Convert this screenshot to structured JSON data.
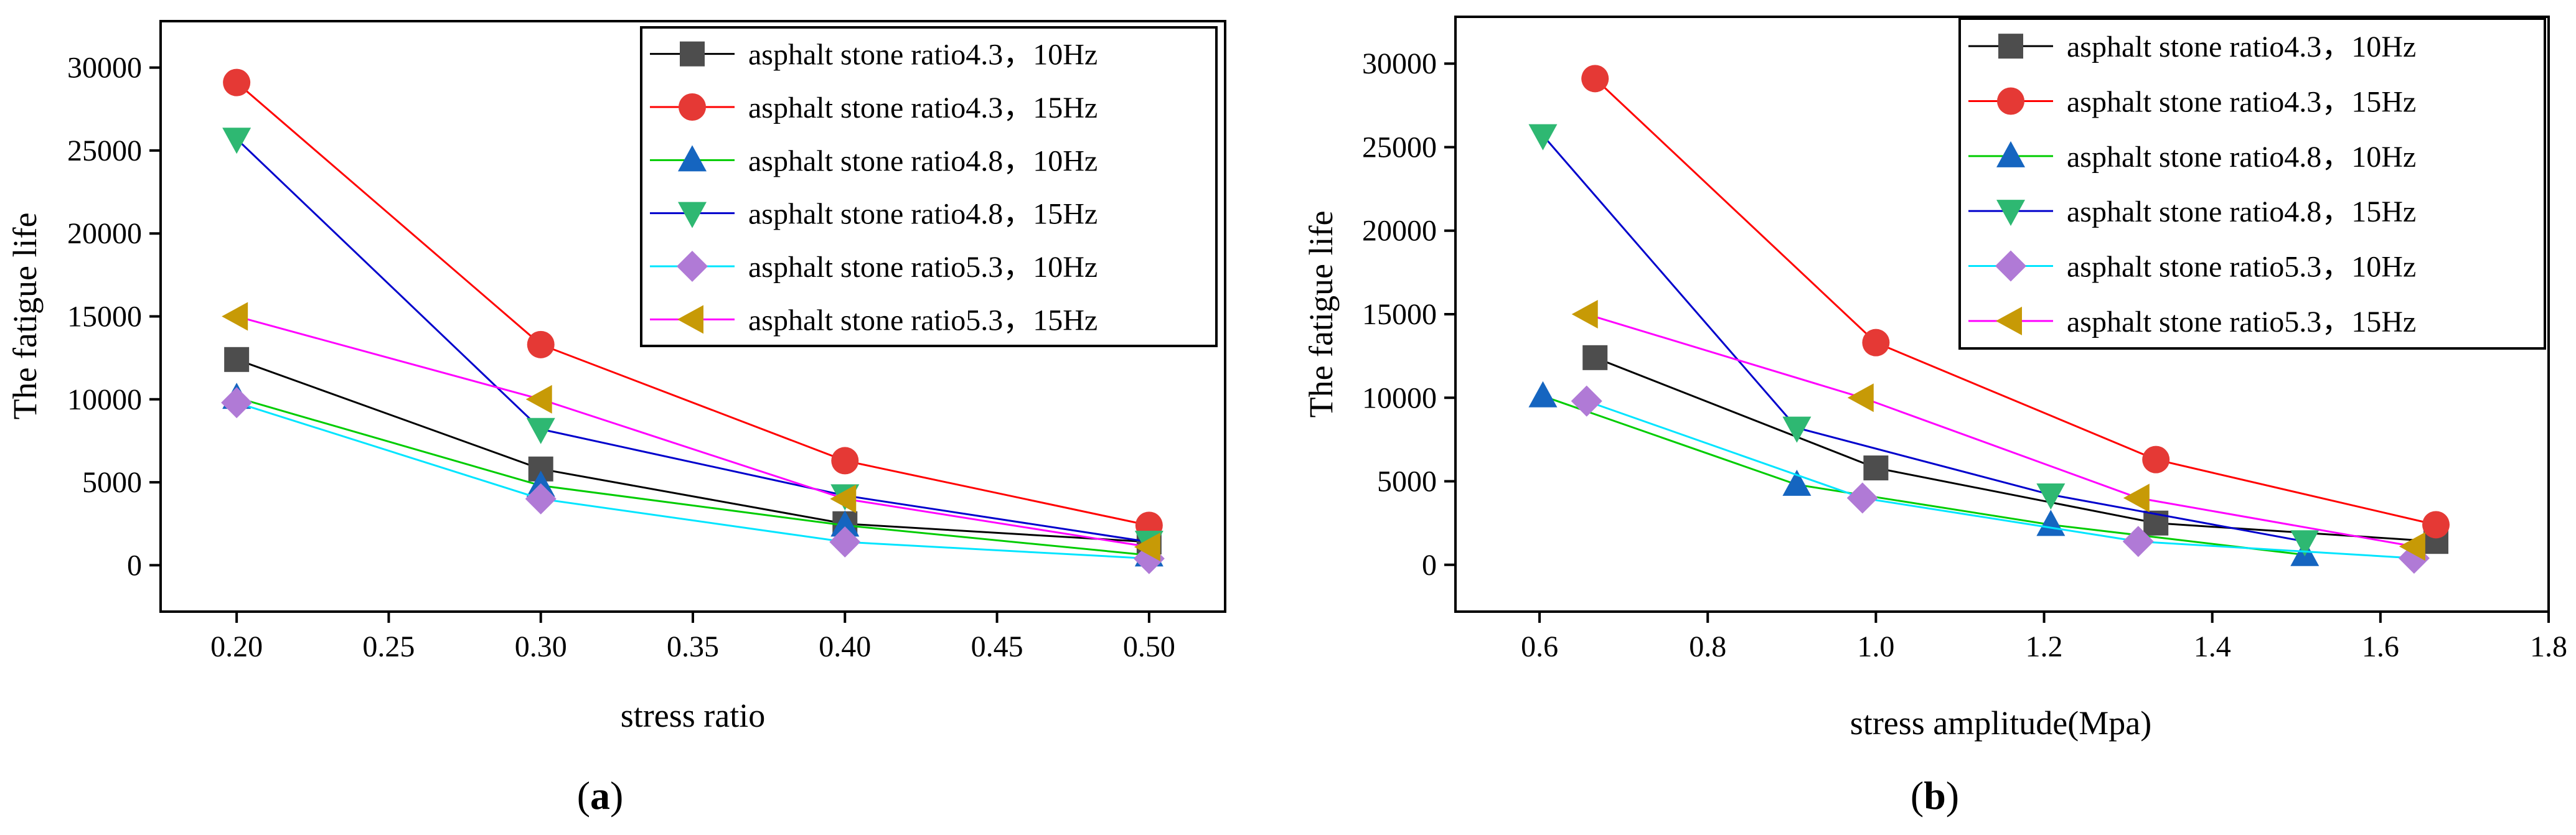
{
  "chart_data": [
    {
      "type": "line",
      "panel_label": "a",
      "xlabel": "stress ratio",
      "ylabel": "The fatigue life",
      "xlim": [
        0.175,
        0.525
      ],
      "ylim": [
        -2800,
        32800
      ],
      "xticks": [
        0.2,
        0.25,
        0.3,
        0.35,
        0.4,
        0.45,
        0.5
      ],
      "xtick_labels": [
        "0.20",
        "0.25",
        "0.30",
        "0.35",
        "0.40",
        "0.45",
        "0.50"
      ],
      "yticks": [
        0,
        5000,
        10000,
        15000,
        20000,
        25000,
        30000
      ],
      "ytick_labels": [
        "0",
        "5000",
        "10000",
        "15000",
        "20000",
        "25000",
        "30000"
      ],
      "legend_position": "top-right",
      "series": [
        {
          "name": "asphalt stone ratio4.3，10Hz",
          "color": "#000000",
          "marker_color": "#4d4d4d",
          "marker": "square",
          "x": [
            0.2,
            0.3,
            0.4,
            0.5
          ],
          "y": [
            12400,
            5800,
            2500,
            1400
          ]
        },
        {
          "name": "asphalt stone ratio4.3，15Hz",
          "color": "#ff0000",
          "marker_color": "#e53935",
          "marker": "circle",
          "x": [
            0.2,
            0.3,
            0.4,
            0.5
          ],
          "y": [
            29100,
            13300,
            6300,
            2400
          ]
        },
        {
          "name": "asphalt stone ratio4.8，10Hz",
          "color": "#00cc00",
          "marker_color": "#1565c0",
          "marker": "triangle-up",
          "x": [
            0.2,
            0.3,
            0.4,
            0.5
          ],
          "y": [
            10100,
            4800,
            2400,
            600
          ]
        },
        {
          "name": "asphalt stone ratio4.8，15Hz",
          "color": "#0000cc",
          "marker_color": "#2eb872",
          "marker": "triangle-down",
          "x": [
            0.2,
            0.3,
            0.4,
            0.5
          ],
          "y": [
            25700,
            8200,
            4200,
            1400
          ]
        },
        {
          "name": "asphalt stone ratio5.3，10Hz",
          "color": "#00e5ff",
          "marker_color": "#b07ad6",
          "marker": "diamond",
          "x": [
            0.2,
            0.3,
            0.4,
            0.5
          ],
          "y": [
            9800,
            4000,
            1400,
            400
          ]
        },
        {
          "name": "asphalt stone ratio5.3，15Hz",
          "color": "#ff00ff",
          "marker_color": "#c79a06",
          "marker": "triangle-left",
          "x": [
            0.2,
            0.3,
            0.4,
            0.5
          ],
          "y": [
            15000,
            10000,
            4000,
            1100
          ]
        }
      ]
    },
    {
      "type": "line",
      "panel_label": "b",
      "xlabel": "stress amplitude(Mpa)",
      "ylabel": "The fatigue life",
      "xlim": [
        0.5,
        1.8
      ],
      "ylim": [
        -2800,
        32800
      ],
      "xticks": [
        0.6,
        0.8,
        1.0,
        1.2,
        1.4,
        1.6,
        1.8
      ],
      "xtick_labels": [
        "0.6",
        "0.8",
        "1.0",
        "1.2",
        "1.4",
        "1.6",
        "1.8"
      ],
      "yticks": [
        0,
        5000,
        10000,
        15000,
        20000,
        25000,
        30000
      ],
      "ytick_labels": [
        "0",
        "5000",
        "10000",
        "15000",
        "20000",
        "25000",
        "30000"
      ],
      "legend_position": "top-right",
      "series": [
        {
          "name": "asphalt stone ratio4.3，10Hz",
          "color": "#000000",
          "marker_color": "#4d4d4d",
          "marker": "square",
          "x": [
            0.666,
            1.0,
            1.333,
            1.666
          ],
          "y": [
            12400,
            5800,
            2500,
            1400
          ]
        },
        {
          "name": "asphalt stone ratio4.3，15Hz",
          "color": "#ff0000",
          "marker_color": "#e53935",
          "marker": "circle",
          "x": [
            0.666,
            1.0,
            1.333,
            1.666
          ],
          "y": [
            29100,
            13300,
            6300,
            2400
          ]
        },
        {
          "name": "asphalt stone ratio4.8，10Hz",
          "color": "#00cc00",
          "marker_color": "#1565c0",
          "marker": "triangle-up",
          "x": [
            0.604,
            0.906,
            1.208,
            1.51
          ],
          "y": [
            10100,
            4800,
            2400,
            600
          ]
        },
        {
          "name": "asphalt stone ratio4.8，15Hz",
          "color": "#0000cc",
          "marker_color": "#2eb872",
          "marker": "triangle-down",
          "x": [
            0.604,
            0.906,
            1.208,
            1.51
          ],
          "y": [
            25700,
            8200,
            4200,
            1400
          ]
        },
        {
          "name": "asphalt stone ratio5.3，10Hz",
          "color": "#00e5ff",
          "marker_color": "#b07ad6",
          "marker": "diamond",
          "x": [
            0.656,
            0.984,
            1.312,
            1.64
          ],
          "y": [
            9800,
            4000,
            1400,
            400
          ]
        },
        {
          "name": "asphalt stone ratio5.3，15Hz",
          "color": "#ff00ff",
          "marker_color": "#c79a06",
          "marker": "triangle-left",
          "x": [
            0.656,
            0.984,
            1.312,
            1.64
          ],
          "y": [
            15000,
            10000,
            4000,
            1100
          ]
        }
      ]
    }
  ]
}
